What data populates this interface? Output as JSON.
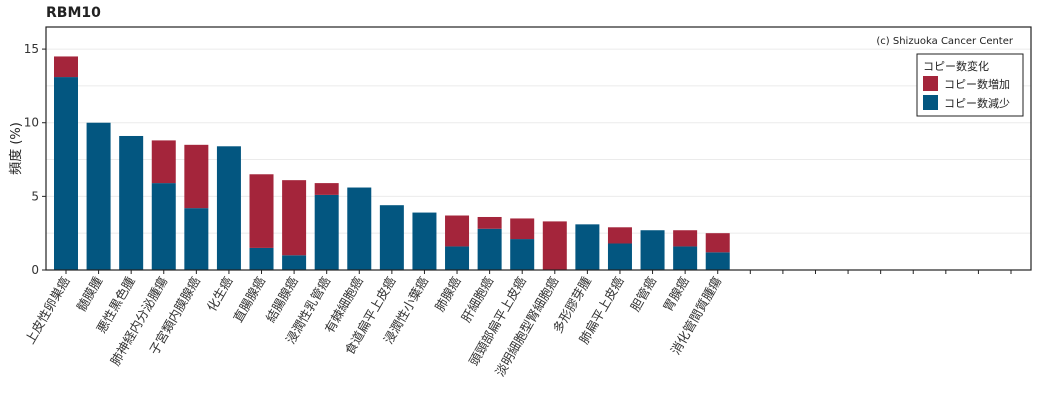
{
  "chart_data": {
    "type": "bar",
    "stacked": true,
    "title": "RBM10",
    "ylabel": "頻度 (%)",
    "xlabel": "",
    "ylim": [
      0,
      16.5
    ],
    "yticks": [
      0,
      5,
      10,
      15
    ],
    "grid": true,
    "legend_position": "top-right",
    "credit": "(c) Shizuoka Cancer Center",
    "legend_title": "コピー数変化",
    "categories": [
      "上皮性卵巣癌",
      "髄膜腫",
      "悪性黒色腫",
      "肺神経内分泌腫瘍",
      "子宮類内膜腺癌",
      "化生癌",
      "直腸腺癌",
      "結腸腺癌",
      "浸潤性乳管癌",
      "有棘細胞癌",
      "食道扁平上皮癌",
      "浸潤性小葉癌",
      "肺腺癌",
      "肝細胞癌",
      "頭頸部扁平上皮癌",
      "淡明細胞型腎細胞癌",
      "多形膠芽腫",
      "肺扁平上皮癌",
      "胆管癌",
      "胃腺癌",
      "消化管間質腫瘍"
    ],
    "empty_slots": 9,
    "series": [
      {
        "name": "コピー数減少",
        "color": "#035680",
        "values": [
          13.1,
          10.0,
          9.1,
          5.9,
          4.2,
          8.4,
          1.5,
          1.0,
          5.1,
          5.6,
          4.4,
          3.9,
          1.6,
          2.8,
          2.1,
          0.0,
          3.1,
          1.8,
          2.7,
          1.6,
          1.2
        ]
      },
      {
        "name": "コピー数増加",
        "color": "#A4253B",
        "values": [
          1.4,
          0.0,
          0.0,
          2.9,
          4.3,
          0.0,
          5.0,
          5.1,
          0.8,
          0.0,
          0.0,
          0.0,
          2.1,
          0.8,
          1.4,
          3.3,
          0.0,
          1.1,
          0.0,
          1.1,
          1.3
        ]
      }
    ],
    "legend_order": [
      "コピー数増加",
      "コピー数減少"
    ]
  }
}
